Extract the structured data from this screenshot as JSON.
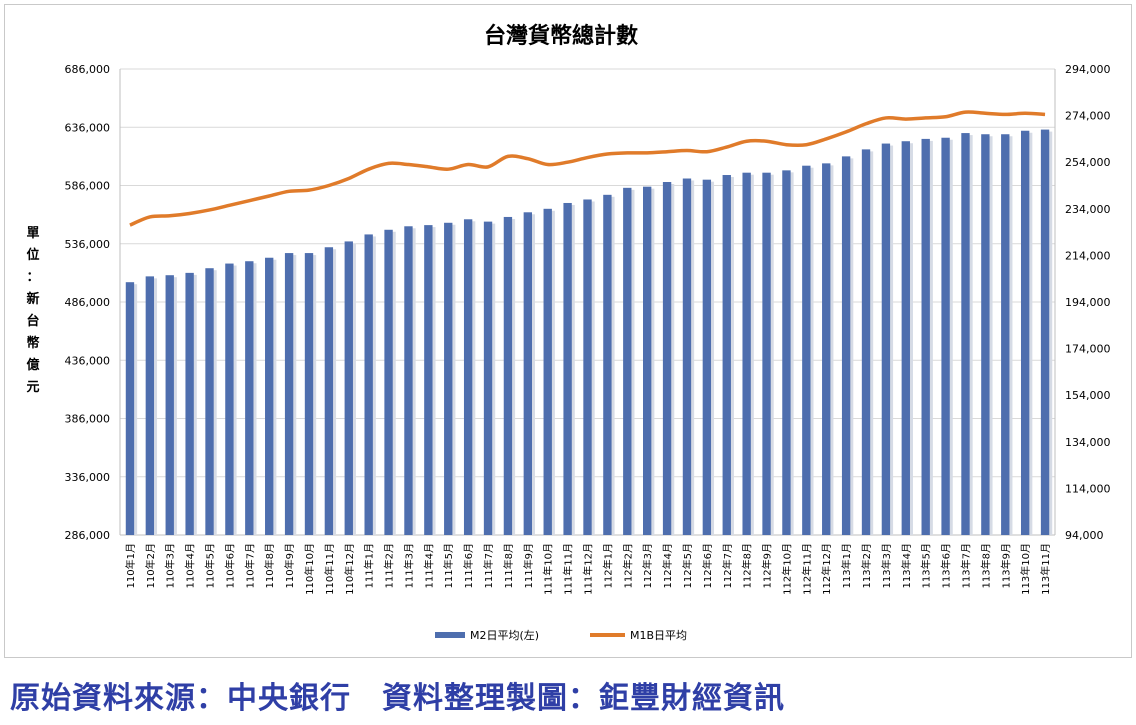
{
  "chart_data": {
    "type": "bar",
    "title": "台灣貨幣總計數",
    "ylabel": "單位：新台幣億元",
    "y_left": {
      "min": 286000,
      "max": 686000,
      "ticks": [
        "686,000",
        "636,000",
        "586,000",
        "536,000",
        "486,000",
        "436,000",
        "386,000",
        "336,000",
        "286,000"
      ]
    },
    "y_right": {
      "min": 94000,
      "max": 294000,
      "ticks": [
        "294,000",
        "274,000",
        "254,000",
        "234,000",
        "214,000",
        "194,000",
        "174,000",
        "154,000",
        "134,000",
        "114,000",
        "94,000"
      ]
    },
    "grid": true,
    "legend_position": "bottom",
    "categories": [
      "110年1月",
      "110年2月",
      "110年3月",
      "110年4月",
      "110年5月",
      "110年6月",
      "110年7月",
      "110年8月",
      "110年9月",
      "110年10月",
      "110年11月",
      "110年12月",
      "111年1月",
      "111年2月",
      "111年3月",
      "111年4月",
      "111年5月",
      "111年6月",
      "111年7月",
      "111年8月",
      "111年9月",
      "111年10月",
      "111年11月",
      "111年12月",
      "112年1月",
      "112年2月",
      "112年3月",
      "112年4月",
      "112年5月",
      "112年6月",
      "112年7月",
      "112年8月",
      "112年9月",
      "112年10月",
      "112年11月",
      "112年12月",
      "113年1月",
      "113年2月",
      "113年3月",
      "113年4月",
      "113年5月",
      "113年6月",
      "113年7月",
      "113年8月",
      "113年9月",
      "113年10月",
      "113年11月"
    ],
    "series": [
      {
        "name": "M2日平均(左)",
        "type": "bar",
        "axis": "left",
        "color": "#4e6eae",
        "values": [
          503000,
          508000,
          509000,
          511000,
          515000,
          519000,
          521000,
          524000,
          528000,
          528000,
          533000,
          538000,
          544000,
          548000,
          551000,
          552000,
          554000,
          557000,
          555000,
          559000,
          563000,
          566000,
          571000,
          574000,
          578000,
          584000,
          585000,
          589000,
          592000,
          591000,
          595000,
          597000,
          597000,
          599000,
          603000,
          605000,
          611000,
          617000,
          622000,
          624000,
          626000,
          627000,
          631000,
          630000,
          630000,
          633000,
          634000
        ]
      },
      {
        "name": "M1B日平均",
        "type": "line",
        "axis": "right",
        "color": "#e07b2a",
        "values": [
          227000,
          230500,
          231000,
          232000,
          233500,
          235500,
          237500,
          239500,
          241500,
          242000,
          244000,
          247000,
          251000,
          253500,
          253000,
          252000,
          251000,
          253000,
          252000,
          256500,
          255500,
          253000,
          254000,
          256000,
          257500,
          258000,
          258000,
          258500,
          259000,
          258500,
          260500,
          263000,
          263000,
          261500,
          261500,
          264000,
          267000,
          270500,
          273000,
          272500,
          273000,
          273500,
          275500,
          275000,
          274500,
          275000,
          274500
        ]
      }
    ]
  },
  "footer": {
    "text": "原始資料來源：中央銀行　資料整理製圖：鉅豐財經資訊"
  }
}
